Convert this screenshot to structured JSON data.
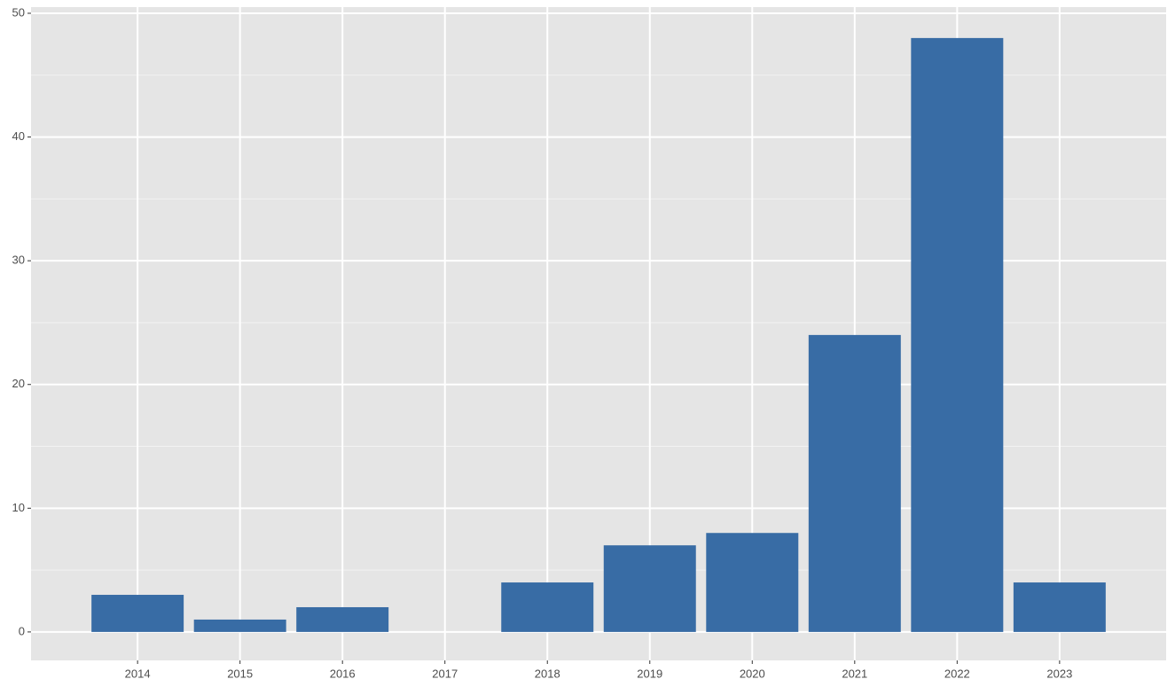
{
  "chart_data": {
    "type": "bar",
    "x": [
      2014,
      2015,
      2016,
      2017,
      2018,
      2019,
      2020,
      2021,
      2022,
      2023
    ],
    "values": [
      3,
      1,
      2,
      null,
      4,
      7,
      8,
      24,
      48,
      4
    ],
    "color": "#386ca5",
    "xlim": [
      2012.96,
      2024.04
    ],
    "xticks": [
      2014,
      2015,
      2016,
      2017,
      2018,
      2019,
      2020,
      2021,
      2022,
      2023
    ],
    "ylim": [
      -2.3,
      50.5
    ],
    "yticks": [
      0,
      10,
      20,
      30,
      40,
      50
    ],
    "grid": true
  }
}
